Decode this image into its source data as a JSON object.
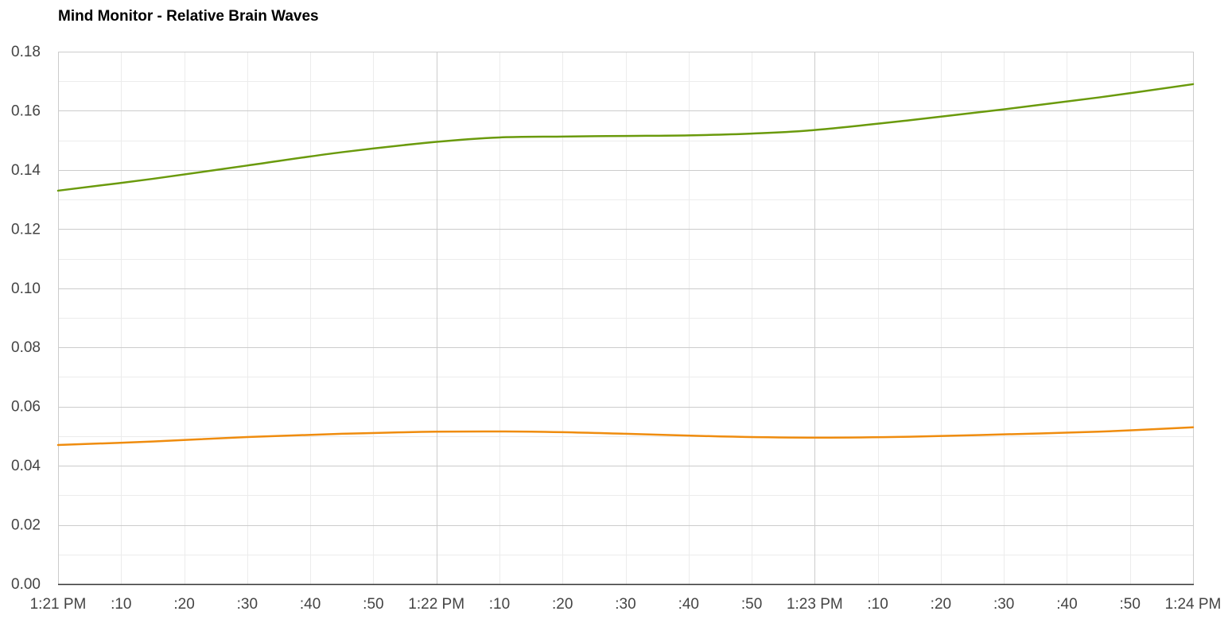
{
  "chart_data": {
    "type": "line",
    "title": "Mind Monitor - Relative Brain Waves",
    "xlabel": "",
    "ylabel": "",
    "x_unit": "seconds",
    "xlim": [
      0,
      180
    ],
    "ylim": [
      0,
      0.18
    ],
    "y_ticks": [
      "0.00",
      "0.02",
      "0.04",
      "0.06",
      "0.08",
      "0.10",
      "0.12",
      "0.14",
      "0.16",
      "0.18"
    ],
    "y_minor_step": 0.01,
    "x_ticks": [
      {
        "value": 0,
        "label": "1:21 PM",
        "major": true
      },
      {
        "value": 10,
        "label": ":10",
        "major": false
      },
      {
        "value": 20,
        "label": ":20",
        "major": false
      },
      {
        "value": 30,
        "label": ":30",
        "major": false
      },
      {
        "value": 40,
        "label": ":40",
        "major": false
      },
      {
        "value": 50,
        "label": ":50",
        "major": false
      },
      {
        "value": 60,
        "label": "1:22 PM",
        "major": true
      },
      {
        "value": 70,
        "label": ":10",
        "major": false
      },
      {
        "value": 80,
        "label": ":20",
        "major": false
      },
      {
        "value": 90,
        "label": ":30",
        "major": false
      },
      {
        "value": 100,
        "label": ":40",
        "major": false
      },
      {
        "value": 110,
        "label": ":50",
        "major": false
      },
      {
        "value": 120,
        "label": "1:23 PM",
        "major": true
      },
      {
        "value": 130,
        "label": ":10",
        "major": false
      },
      {
        "value": 140,
        "label": ":20",
        "major": false
      },
      {
        "value": 150,
        "label": ":30",
        "major": false
      },
      {
        "value": 160,
        "label": ":40",
        "major": false
      },
      {
        "value": 170,
        "label": ":50",
        "major": false
      },
      {
        "value": 180,
        "label": "1:24 PM",
        "major": true
      }
    ],
    "grid": true,
    "legend": "none",
    "series": [
      {
        "color": "#6a9a0c",
        "x": [
          0,
          15,
          30,
          45,
          60,
          70,
          80,
          90,
          100,
          110,
          120,
          135,
          150,
          165,
          180
        ],
        "y": [
          0.133,
          0.137,
          0.1415,
          0.146,
          0.1495,
          0.151,
          0.1513,
          0.1515,
          0.1517,
          0.1523,
          0.1535,
          0.1568,
          0.1605,
          0.1645,
          0.169
        ]
      },
      {
        "color": "#ef8c0e",
        "x": [
          0,
          15,
          30,
          45,
          60,
          75,
          90,
          105,
          120,
          135,
          150,
          165,
          180
        ],
        "y": [
          0.047,
          0.0482,
          0.0497,
          0.0508,
          0.0515,
          0.0515,
          0.0508,
          0.0499,
          0.0495,
          0.0498,
          0.0506,
          0.0515,
          0.053
        ]
      }
    ]
  }
}
